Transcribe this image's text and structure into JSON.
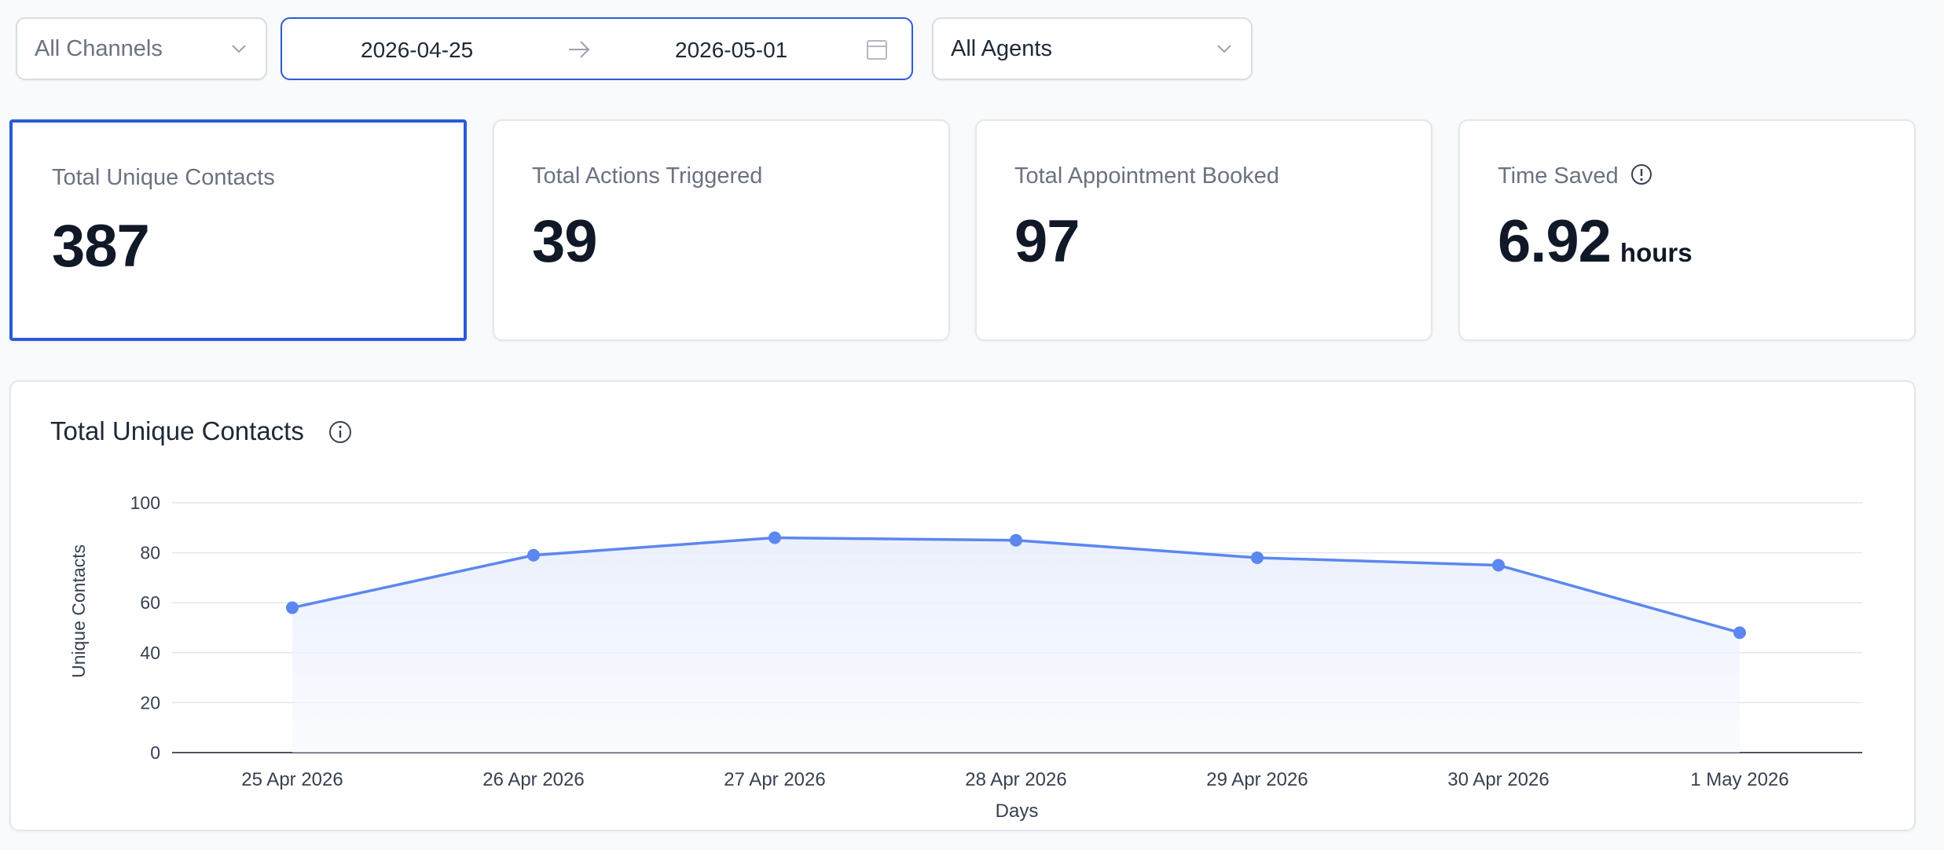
{
  "filters": {
    "channel": {
      "value": "All Channels"
    },
    "date_range": {
      "start": "2026-04-25",
      "end": "2026-05-01"
    },
    "agent": {
      "value": "All Agents"
    }
  },
  "cards": [
    {
      "label": "Total Unique Contacts",
      "value": "387",
      "selected": true
    },
    {
      "label": "Total Actions Triggered",
      "value": "39"
    },
    {
      "label": "Total Appointment Booked",
      "value": "97"
    },
    {
      "label": "Time Saved",
      "value": "6.92",
      "unit": "hours",
      "icon": "info-icon"
    }
  ],
  "chart_panel": {
    "title": "Total Unique Contacts",
    "icon": "info-icon"
  },
  "colors": {
    "accent": "#2a5bd7",
    "line": "#5b87ef",
    "area": "#eef2fc",
    "text_muted": "#6b7280"
  },
  "chart_data": {
    "type": "area",
    "categories": [
      "25 Apr 2026",
      "26 Apr 2026",
      "27 Apr 2026",
      "28 Apr 2026",
      "29 Apr 2026",
      "30 Apr 2026",
      "1 May 2026"
    ],
    "series": [
      {
        "values": [
          58,
          79,
          86,
          85,
          78,
          75,
          48
        ]
      }
    ],
    "xlabel": "Days",
    "ylabel": "Unique Contacts",
    "ylim": [
      0,
      100
    ],
    "yticks": [
      "0",
      "20",
      "40",
      "60",
      "80",
      "100"
    ],
    "grid": true,
    "legend": false
  }
}
